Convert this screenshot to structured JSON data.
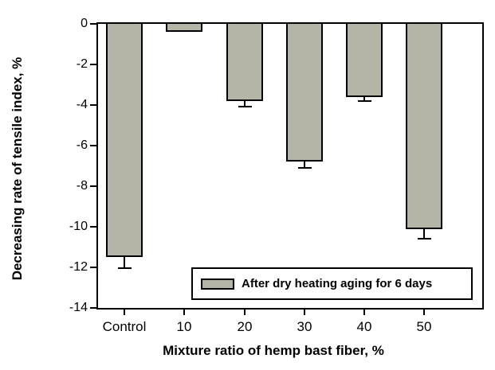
{
  "figure": {
    "background": "#ffffff",
    "frame_color": "#000000"
  },
  "chart_data": {
    "type": "bar",
    "title": "",
    "xlabel": "Mixture ratio of hemp bast fiber, %",
    "ylabel": "Decreasing rate of tensile index, %",
    "categories": [
      "Control",
      "10",
      "20",
      "30",
      "40",
      "50"
    ],
    "values": [
      -11.5,
      -0.4,
      -3.8,
      -6.8,
      -3.6,
      -10.1
    ],
    "errors": [
      0.6,
      0,
      0.3,
      0.35,
      0.25,
      0.5
    ],
    "error_direction": "down",
    "yticks": [
      0,
      -2,
      -4,
      -6,
      -8,
      -10,
      -12,
      -14
    ],
    "ylim": [
      -14,
      0
    ],
    "grid": false,
    "bar_color": "#b4b4a7",
    "bar_border_color": "#000000",
    "legend": {
      "label": "After dry heating aging for 6 days",
      "position": "lower-right"
    }
  }
}
